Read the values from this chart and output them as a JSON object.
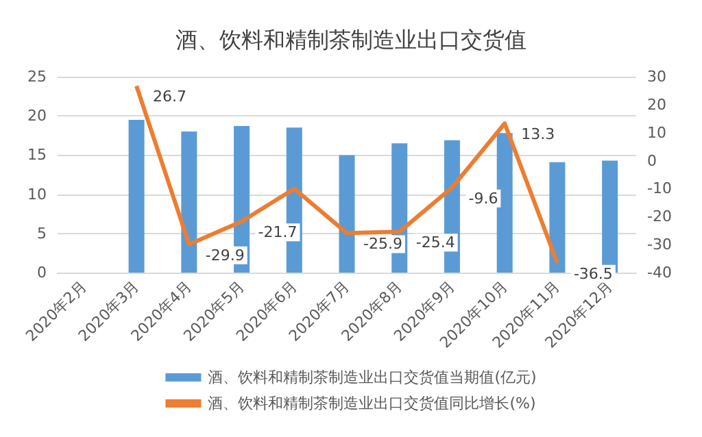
{
  "chart_data": {
    "type": "bar",
    "title": "酒、饮料和精制茶制造业出口交货值",
    "categories": [
      "2020年2月",
      "2020年3月",
      "2020年4月",
      "2020年5月",
      "2020年6月",
      "2020年7月",
      "2020年8月",
      "2020年9月",
      "2020年10月",
      "2020年11月",
      "2020年12月"
    ],
    "series": [
      {
        "name": "酒、饮料和精制茶制造业出口交货值当期值(亿元)",
        "color": "#5b9bd5",
        "values": [
          null,
          19.5,
          18.0,
          18.7,
          18.5,
          15.0,
          16.5,
          16.9,
          17.8,
          14.1,
          14.3
        ]
      },
      {
        "name": "酒、饮料和精制茶制造业出口交货值同比增长(%)",
        "type": "line",
        "axis": "y2",
        "color": "#ed7d31",
        "values": [
          null,
          26.7,
          -29.9,
          -21.7,
          -10,
          -25.9,
          -25.4,
          -9.6,
          13.3,
          -36.5,
          null
        ],
        "value_labels": [
          null,
          "26.7",
          "-29.9",
          "-21.7",
          null,
          "-25.9",
          "-25.4",
          "-9.6",
          "13.3",
          "-36.5",
          null
        ]
      }
    ],
    "ylim": [
      0,
      25
    ],
    "yticks": [
      0,
      5,
      10,
      15,
      20,
      25
    ],
    "y2lim": [
      -40,
      30
    ],
    "y2ticks": [
      -40,
      -30,
      -20,
      -10,
      0,
      10,
      20,
      30
    ],
    "grid": "y",
    "legend": "bottom",
    "marker": "none"
  }
}
